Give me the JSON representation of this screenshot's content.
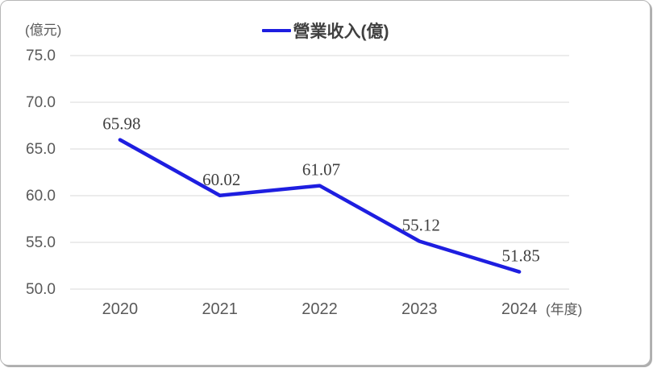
{
  "chart_data": {
    "type": "line",
    "title": "",
    "ylabel": "(億元)",
    "xlabel": "(年度)",
    "categories": [
      "2020",
      "2021",
      "2022",
      "2023",
      "2024"
    ],
    "series": [
      {
        "name": "營業收入(億)",
        "values": [
          65.98,
          60.02,
          61.07,
          55.12,
          51.85
        ],
        "data_labels": [
          "65.98",
          "60.02",
          "61.07",
          "55.12",
          "51.85"
        ]
      }
    ],
    "ylim": [
      50,
      75
    ],
    "y_ticks": [
      50,
      55,
      60,
      65,
      70,
      75
    ],
    "y_tick_labels": [
      "50.0",
      "55.0",
      "60.0",
      "65.0",
      "70.0",
      "75.0"
    ],
    "grid": true,
    "legend_position": "top-center",
    "colors": {
      "line": "#1e1ee0",
      "grid": "#d9d9d9",
      "tick_text": "#595959",
      "data_label_text": "#3f3f3f",
      "legend_text": "#404040",
      "frame_border": "#b7b7b7"
    }
  }
}
